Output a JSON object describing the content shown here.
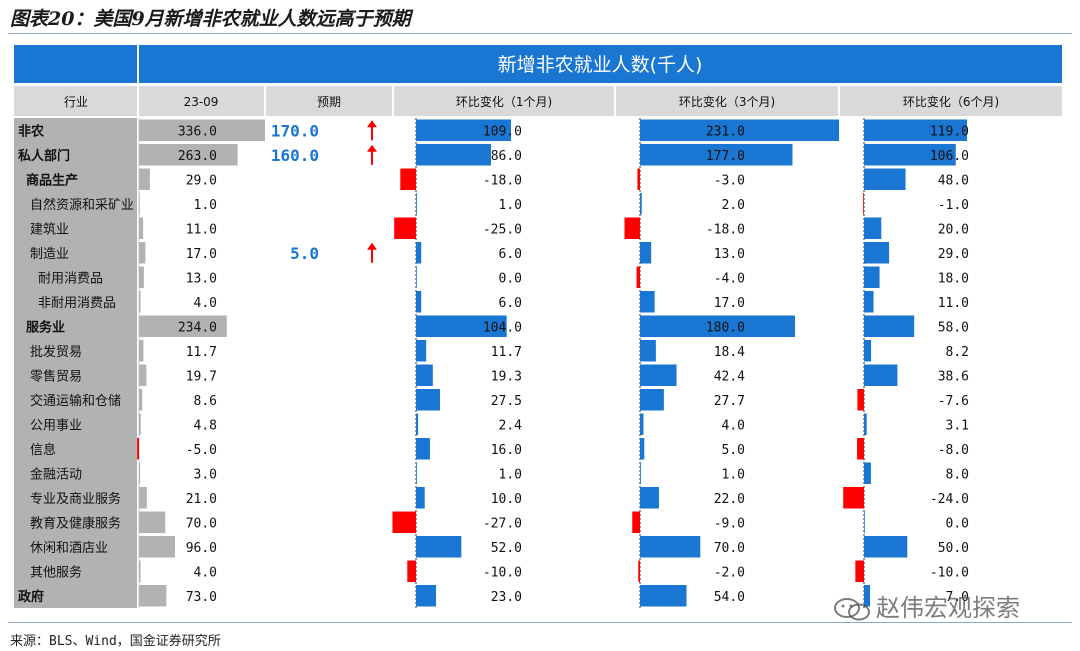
{
  "figure_title": "图表20：美国9月新增非农就业人数远高于预期",
  "source": "来源：BLS、Wind，国金证券研究所",
  "watermark": "赵伟宏观探索",
  "colors": {
    "header_blue": "#1976d2",
    "bar_blue": "#1976d2",
    "bar_red": "#ff0000",
    "gray_bar": "#b2b2b2",
    "header_gray": "#d9d9d9",
    "forecast_blue": "#1976d2",
    "arrow_red": "#ff0000"
  },
  "chart_data": {
    "type": "table",
    "title": "新增非农就业人数(千人)",
    "columns": [
      "行业",
      "23-09",
      "预期",
      "环比变化（1个月)",
      "环比变化（3个月)",
      "环比变化（6个月)"
    ],
    "rows": [
      {
        "industry": "非农",
        "level": 0,
        "bold": true,
        "value": 336.0,
        "forecast": 170.0,
        "arrow": "up",
        "chg1m": 109.0,
        "chg3m": 231.0,
        "chg6m": 119.0
      },
      {
        "industry": "私人部门",
        "level": 0,
        "bold": true,
        "value": 263.0,
        "forecast": 160.0,
        "arrow": "up",
        "chg1m": 86.0,
        "chg3m": 177.0,
        "chg6m": 106.0
      },
      {
        "industry": "商品生产",
        "level": 1,
        "bold": true,
        "value": 29.0,
        "forecast": null,
        "arrow": "",
        "chg1m": -18.0,
        "chg3m": -3.0,
        "chg6m": 48.0
      },
      {
        "industry": "自然资源和采矿业",
        "level": 2,
        "bold": false,
        "value": 1.0,
        "forecast": null,
        "arrow": "",
        "chg1m": 1.0,
        "chg3m": 2.0,
        "chg6m": -1.0
      },
      {
        "industry": "建筑业",
        "level": 2,
        "bold": false,
        "value": 11.0,
        "forecast": null,
        "arrow": "",
        "chg1m": -25.0,
        "chg3m": -18.0,
        "chg6m": 20.0
      },
      {
        "industry": "制造业",
        "level": 2,
        "bold": false,
        "value": 17.0,
        "forecast": 5.0,
        "arrow": "up",
        "chg1m": 6.0,
        "chg3m": 13.0,
        "chg6m": 29.0
      },
      {
        "industry": "耐用消费品",
        "level": 3,
        "bold": false,
        "value": 13.0,
        "forecast": null,
        "arrow": "",
        "chg1m": 0.0,
        "chg3m": -4.0,
        "chg6m": 18.0
      },
      {
        "industry": "非耐用消费品",
        "level": 3,
        "bold": false,
        "value": 4.0,
        "forecast": null,
        "arrow": "",
        "chg1m": 6.0,
        "chg3m": 17.0,
        "chg6m": 11.0
      },
      {
        "industry": "服务业",
        "level": 1,
        "bold": true,
        "value": 234.0,
        "forecast": null,
        "arrow": "",
        "chg1m": 104.0,
        "chg3m": 180.0,
        "chg6m": 58.0
      },
      {
        "industry": "批发贸易",
        "level": 2,
        "bold": false,
        "value": 11.7,
        "forecast": null,
        "arrow": "",
        "chg1m": 11.7,
        "chg3m": 18.4,
        "chg6m": 8.2
      },
      {
        "industry": "零售贸易",
        "level": 2,
        "bold": false,
        "value": 19.7,
        "forecast": null,
        "arrow": "",
        "chg1m": 19.3,
        "chg3m": 42.4,
        "chg6m": 38.6
      },
      {
        "industry": "交通运输和仓储",
        "level": 2,
        "bold": false,
        "value": 8.6,
        "forecast": null,
        "arrow": "",
        "chg1m": 27.5,
        "chg3m": 27.7,
        "chg6m": -7.6
      },
      {
        "industry": "公用事业",
        "level": 2,
        "bold": false,
        "value": 4.8,
        "forecast": null,
        "arrow": "",
        "chg1m": 2.4,
        "chg3m": 4.0,
        "chg6m": 3.1
      },
      {
        "industry": "信息",
        "level": 2,
        "bold": false,
        "value": -5.0,
        "forecast": null,
        "arrow": "",
        "chg1m": 16.0,
        "chg3m": 5.0,
        "chg6m": -8.0
      },
      {
        "industry": "金融活动",
        "level": 2,
        "bold": false,
        "value": 3.0,
        "forecast": null,
        "arrow": "",
        "chg1m": 1.0,
        "chg3m": 1.0,
        "chg6m": 8.0
      },
      {
        "industry": "专业及商业服务",
        "level": 2,
        "bold": false,
        "value": 21.0,
        "forecast": null,
        "arrow": "",
        "chg1m": 10.0,
        "chg3m": 22.0,
        "chg6m": -24.0
      },
      {
        "industry": "教育及健康服务",
        "level": 2,
        "bold": false,
        "value": 70.0,
        "forecast": null,
        "arrow": "",
        "chg1m": -27.0,
        "chg3m": -9.0,
        "chg6m": 0.0
      },
      {
        "industry": "休闲和酒店业",
        "level": 2,
        "bold": false,
        "value": 96.0,
        "forecast": null,
        "arrow": "",
        "chg1m": 52.0,
        "chg3m": 70.0,
        "chg6m": 50.0
      },
      {
        "industry": "其他服务",
        "level": 2,
        "bold": false,
        "value": 4.0,
        "forecast": null,
        "arrow": "",
        "chg1m": -10.0,
        "chg3m": -2.0,
        "chg6m": -10.0
      },
      {
        "industry": "政府",
        "level": 0,
        "bold": true,
        "value": 73.0,
        "forecast": null,
        "arrow": "",
        "chg1m": 23.0,
        "chg3m": 54.0,
        "chg6m": 7.0
      }
    ]
  }
}
